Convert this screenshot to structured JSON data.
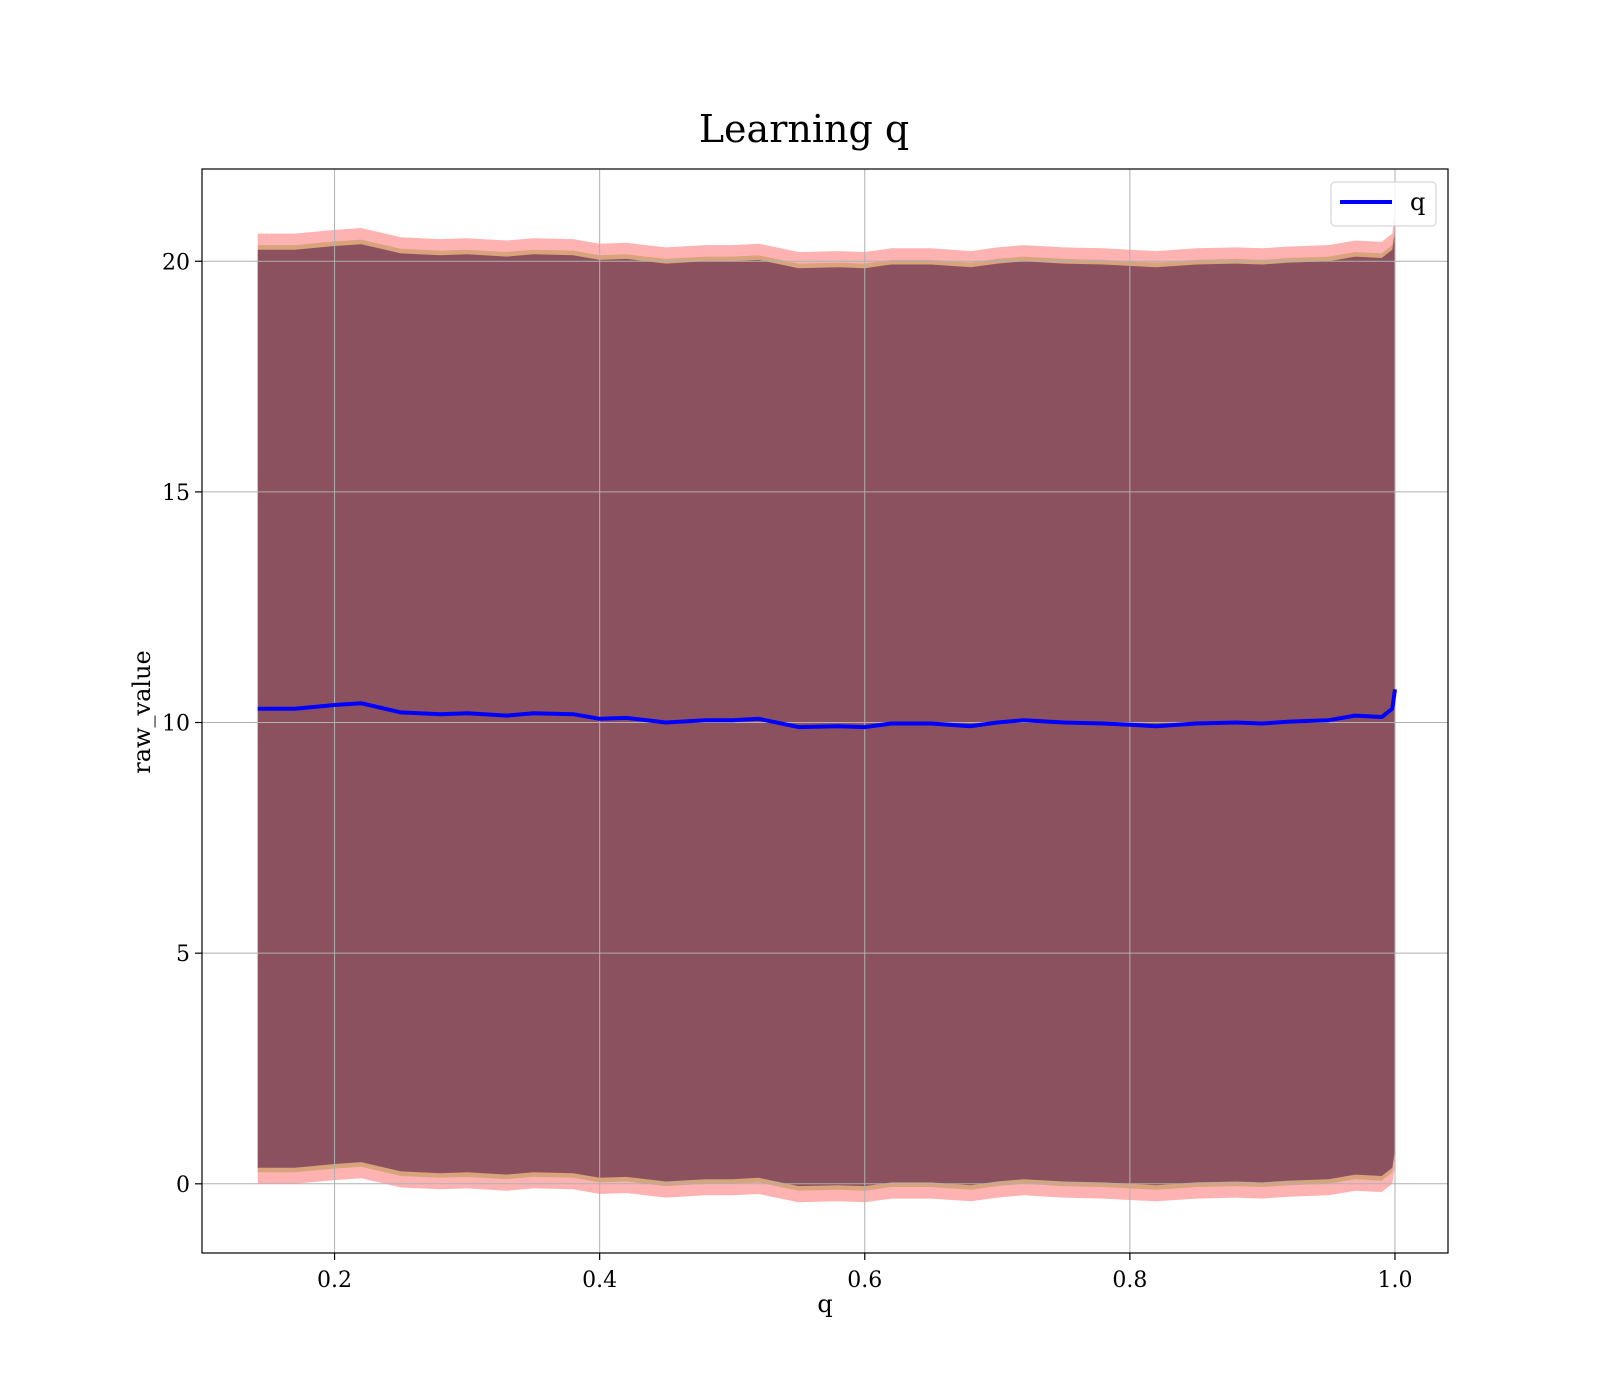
{
  "chart_data": {
    "type": "line",
    "title": "Learning q",
    "xlabel": "q",
    "ylabel": "raw_value",
    "xlim": [
      0.1,
      1.04
    ],
    "ylim": [
      -1.5,
      22.0
    ],
    "grid": true,
    "legend_position": "top-right",
    "x_ticks": [
      0.2,
      0.4,
      0.6,
      0.8,
      1.0
    ],
    "x_tick_labels": [
      "0.2",
      "0.4",
      "0.6",
      "0.8",
      "1.0"
    ],
    "y_ticks": [
      0,
      5,
      10,
      15,
      20
    ],
    "y_tick_labels": [
      "0",
      "5",
      "10",
      "15",
      "20"
    ],
    "series": [
      {
        "name": "q",
        "color": "#0000ff",
        "x": [
          0.142,
          0.17,
          0.2,
          0.22,
          0.25,
          0.28,
          0.3,
          0.33,
          0.35,
          0.38,
          0.4,
          0.42,
          0.45,
          0.48,
          0.5,
          0.52,
          0.55,
          0.58,
          0.6,
          0.62,
          0.65,
          0.68,
          0.7,
          0.72,
          0.75,
          0.78,
          0.8,
          0.82,
          0.85,
          0.88,
          0.9,
          0.92,
          0.95,
          0.97,
          0.99,
          0.998,
          1.0
        ],
        "y": [
          10.3,
          10.3,
          10.38,
          10.42,
          10.22,
          10.18,
          10.2,
          10.15,
          10.2,
          10.18,
          10.08,
          10.1,
          10.0,
          10.05,
          10.05,
          10.08,
          9.9,
          9.92,
          9.9,
          9.98,
          9.98,
          9.92,
          10.0,
          10.05,
          10.0,
          9.98,
          9.95,
          9.92,
          9.98,
          10.0,
          9.98,
          10.02,
          10.05,
          10.15,
          10.12,
          10.3,
          10.72
        ]
      }
    ],
    "bands": [
      {
        "color": "#ff0000",
        "opacity": 0.3,
        "upper": [
          20.6,
          20.6,
          20.68,
          20.72,
          20.52,
          20.48,
          20.5,
          20.45,
          20.5,
          20.48,
          20.38,
          20.4,
          20.3,
          20.35,
          20.35,
          20.38,
          20.2,
          20.22,
          20.2,
          20.28,
          20.28,
          20.22,
          20.3,
          20.35,
          20.3,
          20.28,
          20.25,
          20.22,
          20.28,
          20.3,
          20.28,
          20.32,
          20.35,
          20.45,
          20.42,
          20.6,
          21.1
        ],
        "lower": [
          0.0,
          0.0,
          0.08,
          0.12,
          -0.08,
          -0.12,
          -0.1,
          -0.15,
          -0.1,
          -0.12,
          -0.22,
          -0.2,
          -0.3,
          -0.25,
          -0.25,
          -0.22,
          -0.4,
          -0.38,
          -0.4,
          -0.32,
          -0.32,
          -0.38,
          -0.3,
          -0.25,
          -0.3,
          -0.32,
          -0.35,
          -0.38,
          -0.32,
          -0.3,
          -0.32,
          -0.28,
          -0.25,
          -0.15,
          -0.18,
          0.0,
          0.4
        ]
      },
      {
        "color": "#808000",
        "opacity": 0.3,
        "upper": [
          20.35,
          20.35,
          20.43,
          20.47,
          20.27,
          20.23,
          20.25,
          20.2,
          20.25,
          20.23,
          20.13,
          20.15,
          20.05,
          20.1,
          20.1,
          20.13,
          19.95,
          19.97,
          19.95,
          20.03,
          20.03,
          19.97,
          20.05,
          20.1,
          20.05,
          20.03,
          20.0,
          19.97,
          20.03,
          20.05,
          20.03,
          20.07,
          20.1,
          20.2,
          20.17,
          20.35,
          20.75
        ],
        "lower": [
          0.25,
          0.25,
          0.33,
          0.37,
          0.17,
          0.13,
          0.15,
          0.1,
          0.15,
          0.13,
          0.03,
          0.05,
          -0.05,
          0.0,
          0.0,
          0.03,
          -0.15,
          -0.13,
          -0.15,
          -0.07,
          -0.07,
          -0.13,
          -0.05,
          0.0,
          -0.05,
          -0.07,
          -0.1,
          -0.13,
          -0.07,
          -0.05,
          -0.07,
          -0.03,
          0.0,
          0.1,
          0.07,
          0.25,
          0.65
        ]
      },
      {
        "color": "#400040",
        "opacity": 0.5,
        "upper": [
          20.25,
          20.25,
          20.33,
          20.37,
          20.17,
          20.13,
          20.15,
          20.1,
          20.15,
          20.13,
          20.03,
          20.05,
          19.95,
          20.0,
          20.0,
          20.03,
          19.85,
          19.87,
          19.85,
          19.93,
          19.93,
          19.87,
          19.95,
          20.0,
          19.95,
          19.93,
          19.9,
          19.87,
          19.93,
          19.95,
          19.93,
          19.97,
          20.0,
          20.1,
          20.07,
          20.25,
          20.65
        ],
        "lower": [
          0.35,
          0.35,
          0.43,
          0.47,
          0.27,
          0.23,
          0.25,
          0.2,
          0.25,
          0.23,
          0.13,
          0.15,
          0.05,
          0.1,
          0.1,
          0.13,
          -0.05,
          -0.03,
          -0.05,
          0.03,
          0.03,
          -0.03,
          0.05,
          0.1,
          0.05,
          0.03,
          0.0,
          -0.03,
          0.03,
          0.05,
          0.03,
          0.07,
          0.1,
          0.2,
          0.17,
          0.35,
          0.75
        ]
      }
    ]
  }
}
